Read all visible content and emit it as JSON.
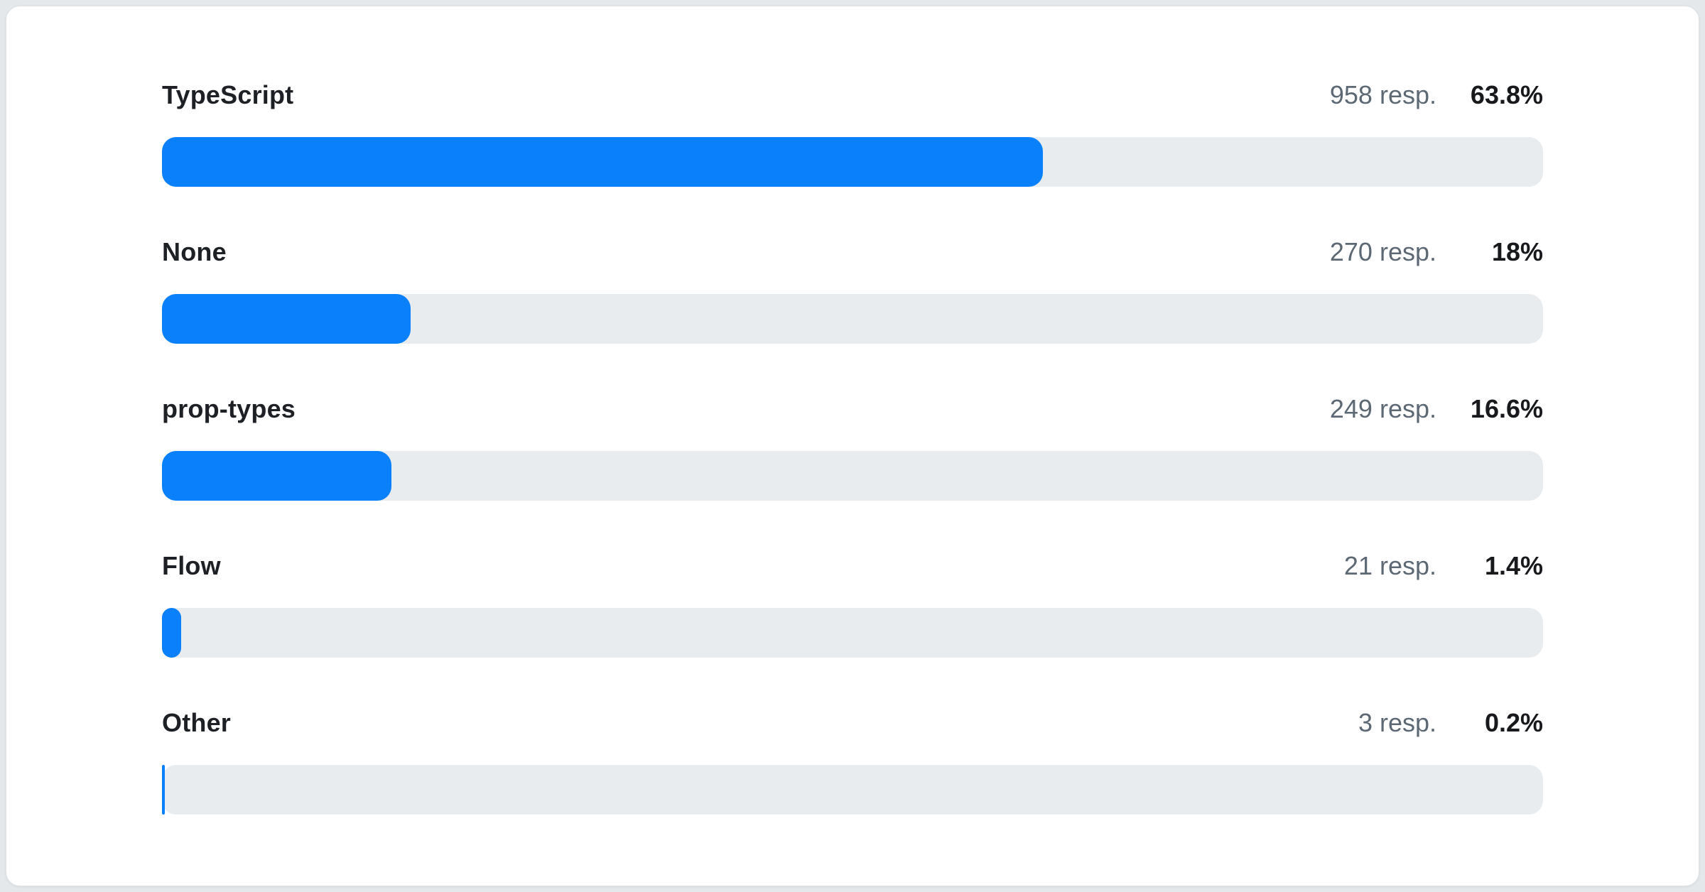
{
  "theme": {
    "accent_blue": "#0a80fa",
    "track_gray": "#e9ecef",
    "label_color": "#1d2024",
    "count_color": "#5c6873",
    "percent_color": "#17191c",
    "page_bg": "#e5e8ea",
    "card_bg": "#ffffff",
    "card_border": "#dfe3e6"
  },
  "chart_data": {
    "type": "bar",
    "orientation": "horizontal",
    "title": "",
    "categories": [
      "TypeScript",
      "None",
      "prop-types",
      "Flow",
      "Other"
    ],
    "series": [
      {
        "name": "percent",
        "values": [
          63.8,
          18,
          16.6,
          1.4,
          0.2
        ]
      },
      {
        "name": "responses",
        "values": [
          958,
          270,
          249,
          21,
          3
        ]
      }
    ],
    "xlim": [
      0,
      100
    ],
    "grid": false,
    "legend": false,
    "bar_color": "#0a80fa",
    "track_color": "#e9ecef"
  },
  "rows": [
    {
      "label": "TypeScript",
      "count_text": "958 resp.",
      "percent_text": "63.8%",
      "percent": 63.8
    },
    {
      "label": "None",
      "count_text": "270 resp.",
      "percent_text": "18%",
      "percent": 18
    },
    {
      "label": "prop-types",
      "count_text": "249 resp.",
      "percent_text": "16.6%",
      "percent": 16.6
    },
    {
      "label": "Flow",
      "count_text": "21 resp.",
      "percent_text": "1.4%",
      "percent": 1.4
    },
    {
      "label": "Other",
      "count_text": "3 resp.",
      "percent_text": "0.2%",
      "percent": 0.2
    }
  ]
}
